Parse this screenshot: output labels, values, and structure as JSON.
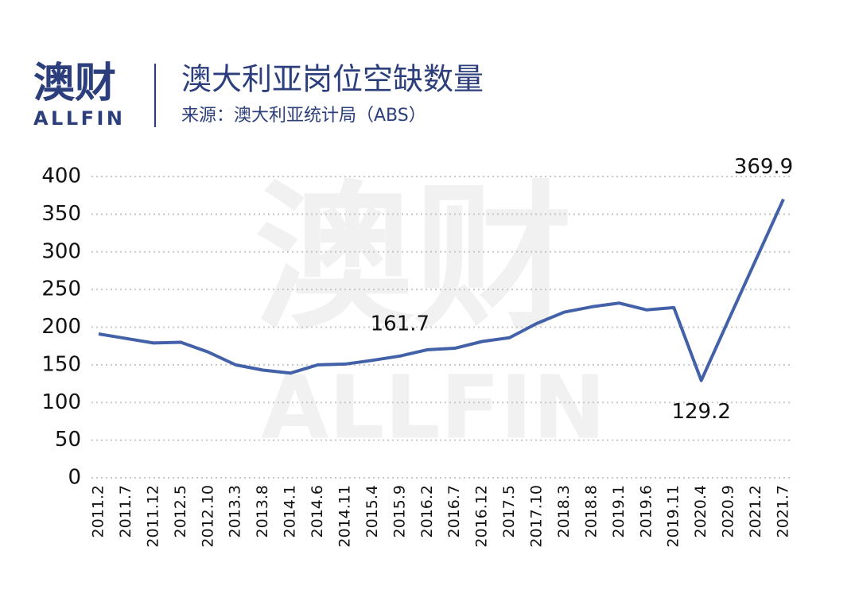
{
  "brand": {
    "name": "澳财",
    "sub": "ALLFIN"
  },
  "chart_data": {
    "type": "line",
    "title": "澳大利亚岗位空缺数量",
    "subtitle": "来源：澳大利亚统计局（ABS）",
    "categories": [
      "2011.2",
      "2011.7",
      "2011.12",
      "2012.5",
      "2012.10",
      "2013.3",
      "2013.8",
      "2014.1",
      "2014.6",
      "2014.11",
      "2015.4",
      "2015.9",
      "2016.2",
      "2016.7",
      "2016.12",
      "2017.5",
      "2017.10",
      "2018.3",
      "2018.8",
      "2019.1",
      "2019.6",
      "2019.11",
      "2020.4",
      "2020.9",
      "2021.2",
      "2021.7"
    ],
    "series": [
      {
        "name": "岗位空缺数量",
        "color": "#4361a8",
        "values": [
          191,
          185,
          179,
          180,
          167,
          150,
          143,
          139,
          150,
          151,
          156,
          161.7,
          170,
          172,
          181,
          186,
          205,
          220,
          227,
          232,
          223,
          226,
          129.2,
          210,
          290,
          369.9
        ],
        "value_labels": [
          null,
          null,
          null,
          null,
          null,
          null,
          null,
          null,
          null,
          null,
          null,
          "161.7",
          null,
          null,
          null,
          null,
          null,
          null,
          null,
          null,
          null,
          null,
          "129.2",
          null,
          null,
          "369.9"
        ]
      }
    ],
    "ylim": [
      0,
      400
    ],
    "yticks": [
      0,
      50,
      100,
      150,
      200,
      250,
      300,
      350,
      400
    ],
    "grid": true
  }
}
